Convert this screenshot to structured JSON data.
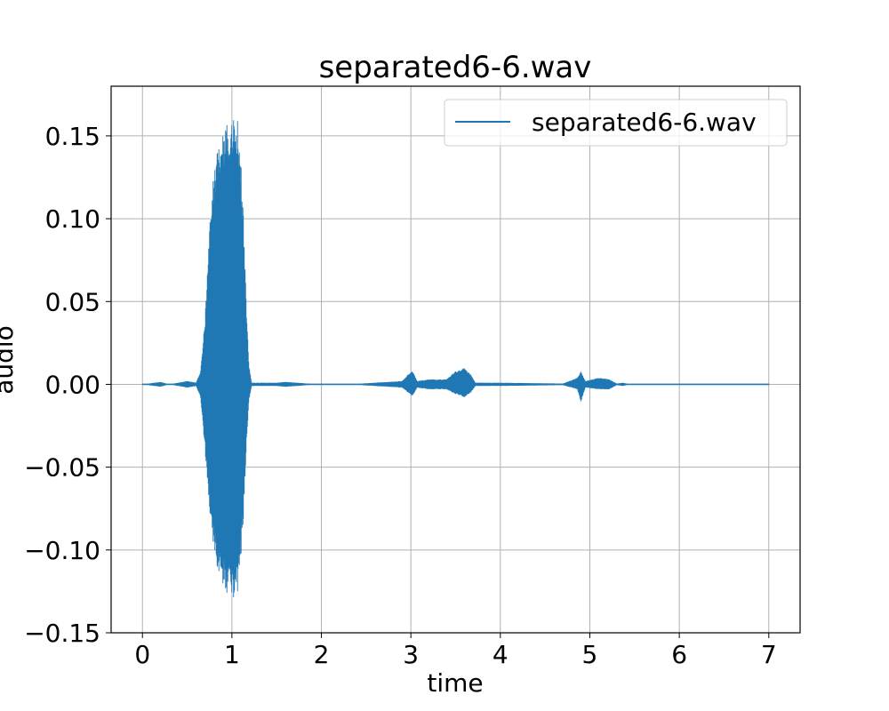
{
  "chart_data": {
    "type": "line",
    "title": "separated6-6.wav",
    "xlabel": "time",
    "ylabel": "audio",
    "xlim": [
      -0.35,
      7.35
    ],
    "ylim": [
      -0.15,
      0.18
    ],
    "xticks": [
      0,
      1,
      2,
      3,
      4,
      5,
      6,
      7
    ],
    "xtick_labels": [
      "0",
      "1",
      "2",
      "3",
      "4",
      "5",
      "6",
      "7"
    ],
    "yticks": [
      -0.15,
      -0.1,
      -0.05,
      0.0,
      0.05,
      0.1,
      0.15
    ],
    "ytick_labels": [
      "−0.15",
      "−0.10",
      "−0.05",
      "0.00",
      "0.05",
      "0.10",
      "0.15"
    ],
    "grid": true,
    "legend_position": "top-right",
    "series": [
      {
        "name": "separated6-6.wav",
        "color": "#1f77b4",
        "envelope": [
          {
            "t": 0.0,
            "max": 0.0,
            "min": 0.0
          },
          {
            "t": 0.2,
            "max": 0.0015,
            "min": -0.0015
          },
          {
            "t": 0.3,
            "max": 0.0,
            "min": 0.0
          },
          {
            "t": 0.5,
            "max": 0.002,
            "min": -0.002
          },
          {
            "t": 0.6,
            "max": 0.001,
            "min": -0.001
          },
          {
            "t": 0.65,
            "max": 0.008,
            "min": -0.008
          },
          {
            "t": 0.7,
            "max": 0.04,
            "min": -0.04
          },
          {
            "t": 0.75,
            "max": 0.1,
            "min": -0.08
          },
          {
            "t": 0.8,
            "max": 0.13,
            "min": -0.1
          },
          {
            "t": 0.85,
            "max": 0.145,
            "min": -0.115
          },
          {
            "t": 0.9,
            "max": 0.152,
            "min": -0.122
          },
          {
            "t": 0.95,
            "max": 0.158,
            "min": -0.127
          },
          {
            "t": 1.0,
            "max": 0.162,
            "min": -0.13
          },
          {
            "t": 1.03,
            "max": 0.167,
            "min": -0.135
          },
          {
            "t": 1.07,
            "max": 0.16,
            "min": -0.125
          },
          {
            "t": 1.1,
            "max": 0.135,
            "min": -0.105
          },
          {
            "t": 1.13,
            "max": 0.1,
            "min": -0.08
          },
          {
            "t": 1.16,
            "max": 0.05,
            "min": -0.04
          },
          {
            "t": 1.19,
            "max": 0.012,
            "min": -0.01
          },
          {
            "t": 1.22,
            "max": 0.001,
            "min": -0.001
          },
          {
            "t": 1.5,
            "max": 0.001,
            "min": -0.001
          },
          {
            "t": 1.6,
            "max": 0.0015,
            "min": -0.0015
          },
          {
            "t": 1.85,
            "max": 0.0005,
            "min": -0.0005
          },
          {
            "t": 2.3,
            "max": 0.0,
            "min": 0.0
          },
          {
            "t": 2.6,
            "max": 0.001,
            "min": -0.001
          },
          {
            "t": 2.9,
            "max": 0.002,
            "min": -0.002
          },
          {
            "t": 2.97,
            "max": 0.006,
            "min": -0.005
          },
          {
            "t": 3.02,
            "max": 0.008,
            "min": -0.007
          },
          {
            "t": 3.07,
            "max": 0.002,
            "min": -0.002
          },
          {
            "t": 3.2,
            "max": 0.003,
            "min": -0.003
          },
          {
            "t": 3.4,
            "max": 0.003,
            "min": -0.003
          },
          {
            "t": 3.5,
            "max": 0.008,
            "min": -0.006
          },
          {
            "t": 3.6,
            "max": 0.01,
            "min": -0.008
          },
          {
            "t": 3.67,
            "max": 0.006,
            "min": -0.005
          },
          {
            "t": 3.72,
            "max": 0.001,
            "min": -0.001
          },
          {
            "t": 4.0,
            "max": 0.001,
            "min": -0.001
          },
          {
            "t": 4.7,
            "max": 0.0005,
            "min": -0.0005
          },
          {
            "t": 4.86,
            "max": 0.004,
            "min": -0.003
          },
          {
            "t": 4.9,
            "max": 0.008,
            "min": -0.011
          },
          {
            "t": 4.95,
            "max": 0.002,
            "min": -0.002
          },
          {
            "t": 5.1,
            "max": 0.004,
            "min": -0.003
          },
          {
            "t": 5.22,
            "max": 0.003,
            "min": -0.003
          },
          {
            "t": 5.3,
            "max": 0.0005,
            "min": -0.0005
          },
          {
            "t": 5.37,
            "max": 0.001,
            "min": -0.001
          },
          {
            "t": 5.45,
            "max": 0.0,
            "min": 0.0
          },
          {
            "t": 7.0,
            "max": 0.0,
            "min": 0.0
          }
        ]
      }
    ]
  }
}
